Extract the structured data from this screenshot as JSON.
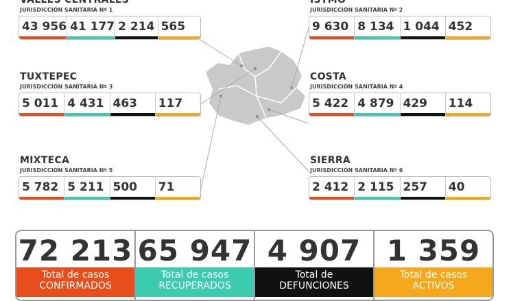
{
  "regions": [
    {
      "name": "VALLES CENTRALES",
      "subtitle": "JURISDICCIÓN SANITARIA Nº 1",
      "values": [
        "43 956",
        "41 177",
        "2 214",
        "565"
      ]
    },
    {
      "name": "ISTMO",
      "subtitle": "JURISDICCIÓN SANITARIA Nº 2",
      "values": [
        "9 630",
        "8 134",
        "1 044",
        "452"
      ]
    },
    {
      "name": "TUXTEPEC",
      "subtitle": "JURISDICCIÓN SANITARIA Nº 3",
      "values": [
        "5 011",
        "4 431",
        "463",
        "117"
      ]
    },
    {
      "name": "COSTA",
      "subtitle": "JURISDICCIÓN SANITARIA Nº 4",
      "values": [
        "5 422",
        "4 879",
        "429",
        "114"
      ]
    },
    {
      "name": "MIXTECA",
      "subtitle": "JURISDICCIÓN SANITARIA Nº 5",
      "values": [
        "5 782",
        "5 211",
        "500",
        "71"
      ]
    },
    {
      "name": "SIERRA",
      "subtitle": "JURISDICCIÓN SANITARIA Nº 6",
      "values": [
        "2 412",
        "2 115",
        "257",
        "40"
      ]
    }
  ],
  "totals": [
    {
      "value": "72 213",
      "label": [
        "Total de casos",
        "CONFIRMADOS"
      ]
    },
    {
      "value": "65 947",
      "label": [
        "Total de casos",
        "RECUPERADOS"
      ]
    },
    {
      "value": "4 907",
      "label": [
        "Total de",
        "DEFUNCIONES"
      ]
    },
    {
      "value": "1 359",
      "label": [
        "Total de casos",
        "ACTIVOS"
      ]
    }
  ]
}
